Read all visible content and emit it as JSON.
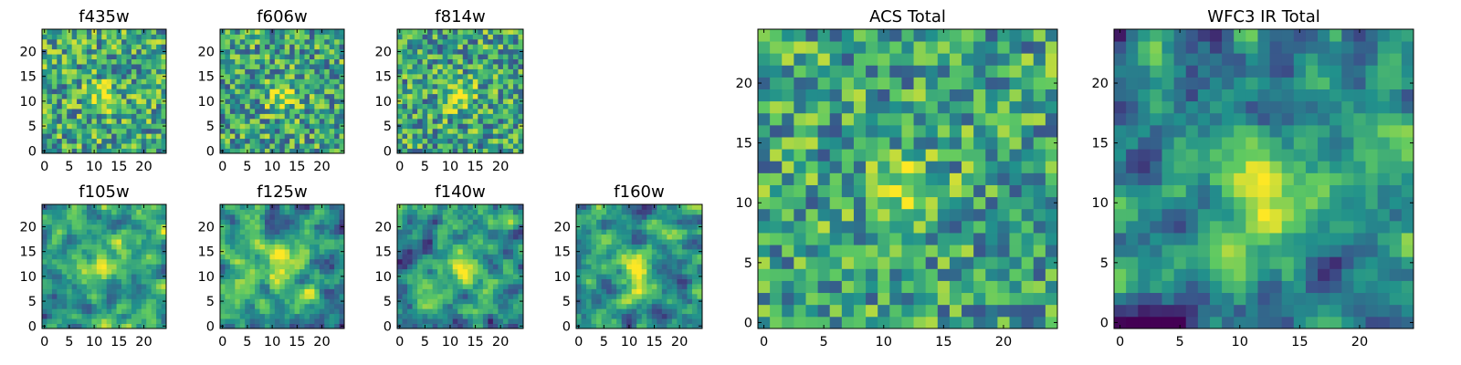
{
  "figure": {
    "colormap": [
      "#440154",
      "#3b528b",
      "#21918c",
      "#5ec962",
      "#fde725"
    ]
  },
  "chart_data": [
    {
      "type": "heatmap",
      "title": "f435w",
      "grid_size": 25,
      "value_range": [
        0,
        1
      ],
      "xticks": [
        "0",
        "5",
        "10",
        "15",
        "20"
      ],
      "yticks": [
        "0",
        "5",
        "10",
        "15",
        "20"
      ],
      "peak": {
        "x": 12,
        "y": 11
      },
      "peak_strength": 0.35,
      "peak_width": 2.0,
      "noise": 0.34,
      "base": 0.6,
      "seed": 11,
      "smooth": 0
    },
    {
      "type": "heatmap",
      "title": "f606w",
      "grid_size": 25,
      "value_range": [
        0,
        1
      ],
      "xticks": [
        "0",
        "5",
        "10",
        "15",
        "20"
      ],
      "yticks": [
        "0",
        "5",
        "10",
        "15",
        "20"
      ],
      "peak": {
        "x": 12,
        "y": 11
      },
      "peak_strength": 0.4,
      "peak_width": 2.0,
      "noise": 0.34,
      "base": 0.58,
      "seed": 23,
      "smooth": 0
    },
    {
      "type": "heatmap",
      "title": "f814w",
      "grid_size": 25,
      "value_range": [
        0,
        1
      ],
      "xticks": [
        "0",
        "5",
        "10",
        "15",
        "20"
      ],
      "yticks": [
        "0",
        "5",
        "10",
        "15",
        "20"
      ],
      "peak": {
        "x": 12,
        "y": 11
      },
      "peak_strength": 0.4,
      "peak_width": 2.0,
      "noise": 0.34,
      "base": 0.58,
      "seed": 37,
      "smooth": 0
    },
    {
      "type": "heatmap",
      "title": "f105w",
      "grid_size": 25,
      "value_range": [
        0,
        1
      ],
      "xticks": [
        "0",
        "5",
        "10",
        "15",
        "20"
      ],
      "yticks": [
        "0",
        "5",
        "10",
        "15",
        "20"
      ],
      "peak": {
        "x": 12,
        "y": 13
      },
      "peak_strength": 0.35,
      "peak_width": 3.0,
      "noise": 0.4,
      "base": 0.55,
      "seed": 41,
      "smooth": 1
    },
    {
      "type": "heatmap",
      "title": "f125w",
      "grid_size": 25,
      "value_range": [
        0,
        1
      ],
      "xticks": [
        "0",
        "5",
        "10",
        "15",
        "20"
      ],
      "yticks": [
        "0",
        "5",
        "10",
        "15",
        "20"
      ],
      "peak": {
        "x": 12,
        "y": 12
      },
      "peak_strength": 0.35,
      "peak_width": 3.0,
      "noise": 0.4,
      "base": 0.55,
      "seed": 53,
      "smooth": 1
    },
    {
      "type": "heatmap",
      "title": "f140w",
      "grid_size": 25,
      "value_range": [
        0,
        1
      ],
      "xticks": [
        "0",
        "5",
        "10",
        "15",
        "20"
      ],
      "yticks": [
        "0",
        "5",
        "10",
        "15",
        "20"
      ],
      "peak": {
        "x": 12,
        "y": 12
      },
      "peak_strength": 0.35,
      "peak_width": 3.0,
      "noise": 0.42,
      "base": 0.52,
      "seed": 67,
      "smooth": 1
    },
    {
      "type": "heatmap",
      "title": "f160w",
      "grid_size": 25,
      "value_range": [
        0,
        1
      ],
      "xticks": [
        "0",
        "5",
        "10",
        "15",
        "20"
      ],
      "yticks": [
        "0",
        "5",
        "10",
        "15",
        "20"
      ],
      "peak": {
        "x": 12,
        "y": 11
      },
      "peak_strength": 0.45,
      "peak_width": 2.5,
      "noise": 0.42,
      "base": 0.5,
      "seed": 71,
      "smooth": 1
    },
    {
      "type": "heatmap",
      "title": "ACS Total",
      "grid_size": 25,
      "value_range": [
        0,
        1
      ],
      "xticks": [
        "0",
        "5",
        "10",
        "15",
        "20"
      ],
      "yticks": [
        "0",
        "5",
        "10",
        "15",
        "20"
      ],
      "peak": {
        "x": 12,
        "y": 11
      },
      "peak_strength": 0.45,
      "peak_width": 1.8,
      "noise": 0.32,
      "base": 0.58,
      "seed": 83,
      "smooth": 0
    },
    {
      "type": "heatmap",
      "title": "WFC3 IR Total",
      "grid_size": 25,
      "value_range": [
        0,
        1
      ],
      "xticks": [
        "0",
        "5",
        "10",
        "15",
        "20"
      ],
      "yticks": [
        "0",
        "5",
        "10",
        "15",
        "20"
      ],
      "peak": {
        "x": 12,
        "y": 11
      },
      "peak_strength": 0.55,
      "peak_width": 2.2,
      "noise": 0.4,
      "base": 0.46,
      "seed": 97,
      "smooth": 1
    }
  ]
}
